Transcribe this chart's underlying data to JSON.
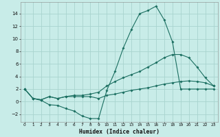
{
  "xlabel": "Humidex (Indice chaleur)",
  "background_color": "#c8ece8",
  "grid_color": "#a8d4ce",
  "line_color": "#1a6e60",
  "xlim": [
    -0.5,
    23.5
  ],
  "ylim": [
    -3.2,
    15.8
  ],
  "xticks": [
    0,
    1,
    2,
    3,
    4,
    5,
    6,
    7,
    8,
    9,
    10,
    11,
    12,
    13,
    14,
    15,
    16,
    17,
    18,
    19,
    20,
    21,
    22,
    23
  ],
  "yticks": [
    -2,
    0,
    2,
    4,
    6,
    8,
    10,
    12,
    14
  ],
  "line_peak_x": [
    0,
    1,
    2,
    3,
    4,
    5,
    6,
    7,
    8,
    9,
    10,
    11,
    12,
    13,
    14,
    15,
    16,
    17,
    18,
    19,
    20,
    21,
    22,
    23
  ],
  "line_peak_y": [
    2,
    0.5,
    0.2,
    -0.5,
    -0.6,
    -1.1,
    -1.5,
    -2.3,
    -2.7,
    -2.7,
    1.8,
    4.8,
    8.5,
    11.5,
    14.0,
    14.5,
    15.2,
    13.0,
    9.5,
    2.0,
    2.0,
    2.0,
    2.0,
    2.0
  ],
  "line_mid_x": [
    0,
    1,
    2,
    3,
    4,
    5,
    6,
    7,
    8,
    9,
    10,
    11,
    12,
    13,
    14,
    15,
    16,
    17,
    18,
    19,
    20,
    21,
    22,
    23
  ],
  "line_mid_y": [
    2,
    0.5,
    0.3,
    0.8,
    0.5,
    0.8,
    1.0,
    1.0,
    1.2,
    1.5,
    2.5,
    3.2,
    3.8,
    4.3,
    4.8,
    5.5,
    6.2,
    7.0,
    7.5,
    7.5,
    7.0,
    5.5,
    3.8,
    2.5
  ],
  "line_low_x": [
    0,
    1,
    2,
    3,
    4,
    5,
    6,
    7,
    8,
    9,
    10,
    11,
    12,
    13,
    14,
    15,
    16,
    17,
    18,
    19,
    20,
    21,
    22,
    23
  ],
  "line_low_y": [
    2,
    0.5,
    0.3,
    0.8,
    0.5,
    0.8,
    0.8,
    0.8,
    0.8,
    0.5,
    1.0,
    1.2,
    1.5,
    1.8,
    2.0,
    2.2,
    2.5,
    2.8,
    3.0,
    3.2,
    3.3,
    3.2,
    3.0,
    2.5
  ]
}
